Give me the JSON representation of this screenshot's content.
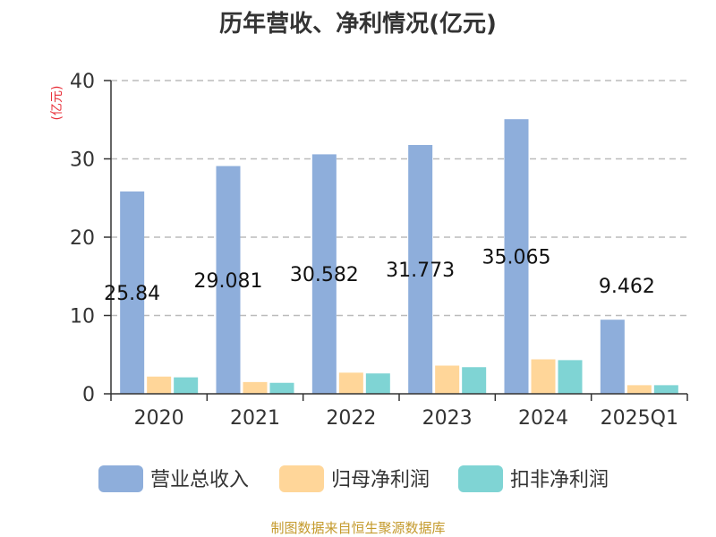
{
  "colors": {
    "revenue": "#8eaedb",
    "net_profit": "#ffd699",
    "deducted_profit": "#7fd4d4",
    "unit_label": "#e8303a",
    "source": "#c49a2c",
    "grid": "#bbbbbb",
    "axis": "#333333"
  },
  "chart_data": {
    "type": "bar",
    "title": "历年营收、净利情况(亿元)",
    "ylabel": "(亿元)",
    "xlabel": "",
    "ylim": [
      0,
      40
    ],
    "yticks": [
      0,
      10,
      20,
      30,
      40
    ],
    "grid": "horizontal dashed",
    "legend_position": "bottom",
    "categories": [
      "2020",
      "2021",
      "2022",
      "2023",
      "2024",
      "2025Q1"
    ],
    "series": [
      {
        "name": "营业总收入",
        "values": [
          25.84,
          29.081,
          30.582,
          31.773,
          35.065,
          9.462
        ],
        "labels": [
          "25.84",
          "29.081",
          "30.582",
          "31.773",
          "35.065",
          "9.462"
        ]
      },
      {
        "name": "归母净利润",
        "values": [
          2.2,
          1.5,
          2.7,
          3.6,
          4.4,
          1.1
        ]
      },
      {
        "name": "扣非净利润",
        "values": [
          2.1,
          1.4,
          2.6,
          3.4,
          4.3,
          1.1
        ]
      }
    ]
  },
  "source_text": "制图数据来自恒生聚源数据库"
}
